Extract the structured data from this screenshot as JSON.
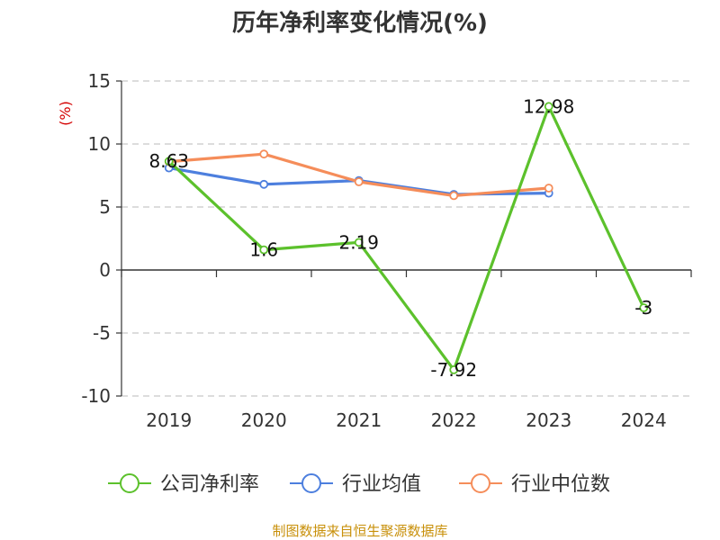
{
  "chart_data": {
    "type": "line",
    "title": "历年净利率变化情况(%)",
    "ylabel": "(%)",
    "xlabel": "",
    "categories": [
      "2019",
      "2020",
      "2021",
      "2022",
      "2023",
      "2024"
    ],
    "ylim": [
      -10,
      15
    ],
    "yticks": [
      15,
      10,
      5,
      0,
      -5,
      -10
    ],
    "grid": true,
    "legend_position": "bottom",
    "series": [
      {
        "name": "公司净利率",
        "color": "#5cc12c",
        "values": [
          8.63,
          1.6,
          2.19,
          -7.92,
          12.98,
          -3
        ],
        "labels": [
          "8.63",
          "1.6",
          "2.19",
          "-7.92",
          "12.98",
          "-3"
        ]
      },
      {
        "name": "行业均值",
        "color": "#4d7fde",
        "values": [
          8.1,
          6.8,
          7.1,
          6.0,
          6.1,
          null
        ]
      },
      {
        "name": "行业中位数",
        "color": "#f58d5a",
        "values": [
          8.6,
          9.2,
          7.0,
          5.9,
          6.5,
          null
        ]
      }
    ]
  },
  "source": "制图数据来自恒生聚源数据库"
}
